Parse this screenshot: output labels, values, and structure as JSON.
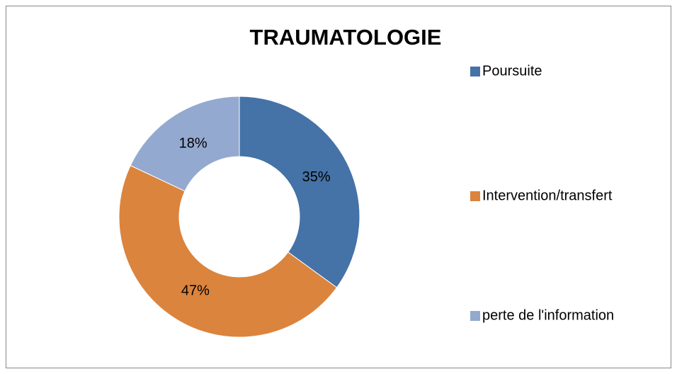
{
  "chart_data": {
    "type": "doughnut",
    "title": "TRAUMATOLOGIE",
    "categories": [
      "Poursuite",
      "Intervention/transfert",
      "perte de l'information"
    ],
    "values": [
      35,
      47,
      18
    ],
    "value_labels": [
      "35%",
      "47%",
      "18%"
    ],
    "colors": [
      "#4572a7",
      "#db843d",
      "#93a9cf"
    ],
    "legend": "right"
  }
}
